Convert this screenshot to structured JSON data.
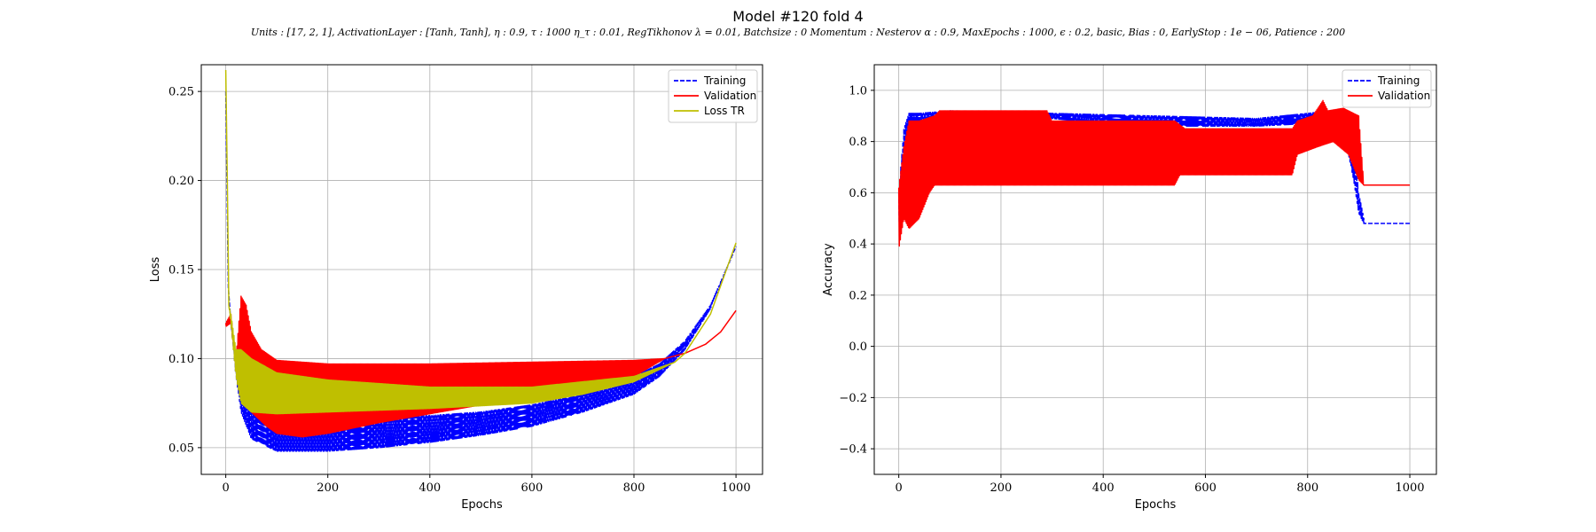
{
  "figure": {
    "title": "Model #120 fold 4",
    "subtitle": "Units : [17, 2, 1], ActivationLayer : [Tanh, Tanh], η : 0.9, τ : 1000 η_τ : 0.01, RegTikhonov λ = 0.01, Batchsize : 0 Momentum : Nesterov α : 0.9, MaxEpochs : 1000, ϵ : 0.2, basic, Bias : 0, EarlyStop : 1e − 06, Patience : 200"
  },
  "chart_data": [
    {
      "type": "line",
      "xlabel": "Epochs",
      "ylabel": "Loss",
      "xlim": [
        -48,
        1052
      ],
      "ylim": [
        0.035,
        0.265
      ],
      "xticks": [
        0,
        200,
        400,
        600,
        800,
        1000
      ],
      "yticks": [
        0.05,
        0.1,
        0.15,
        0.2,
        0.25
      ],
      "ytick_labels": [
        "0.05",
        "0.10",
        "0.15",
        "0.20",
        "0.25"
      ],
      "grid": true,
      "legend_position": "top-right",
      "series": [
        {
          "name": "Training",
          "color": "#0000ff",
          "style": "dashed",
          "oscillating": true,
          "upper": [
            [
              0,
              0.25
            ],
            [
              5,
              0.14
            ],
            [
              10,
              0.12
            ],
            [
              20,
              0.1
            ],
            [
              30,
              0.085
            ],
            [
              50,
              0.072
            ],
            [
              100,
              0.066
            ],
            [
              200,
              0.066
            ],
            [
              300,
              0.067
            ],
            [
              400,
              0.068
            ],
            [
              500,
              0.07
            ],
            [
              600,
              0.074
            ],
            [
              700,
              0.08
            ],
            [
              800,
              0.09
            ],
            [
              850,
              0.097
            ],
            [
              900,
              0.11
            ],
            [
              950,
              0.13
            ],
            [
              1000,
              0.163
            ]
          ],
          "lower": [
            [
              0,
              0.25
            ],
            [
              5,
              0.14
            ],
            [
              10,
              0.12
            ],
            [
              20,
              0.09
            ],
            [
              30,
              0.07
            ],
            [
              50,
              0.055
            ],
            [
              100,
              0.048
            ],
            [
              200,
              0.048
            ],
            [
              300,
              0.05
            ],
            [
              400,
              0.053
            ],
            [
              500,
              0.057
            ],
            [
              600,
              0.062
            ],
            [
              700,
              0.07
            ],
            [
              800,
              0.08
            ],
            [
              850,
              0.09
            ],
            [
              900,
              0.105
            ],
            [
              950,
              0.128
            ],
            [
              1000,
              0.163
            ]
          ]
        },
        {
          "name": "Validation",
          "color": "#ff0000",
          "style": "solid",
          "oscillating": true,
          "upper": [
            [
              0,
              0.12
            ],
            [
              10,
              0.125
            ],
            [
              20,
              0.1
            ],
            [
              30,
              0.135
            ],
            [
              40,
              0.13
            ],
            [
              50,
              0.115
            ],
            [
              70,
              0.105
            ],
            [
              100,
              0.099
            ],
            [
              200,
              0.097
            ],
            [
              400,
              0.097
            ],
            [
              600,
              0.098
            ],
            [
              800,
              0.099
            ],
            [
              860,
              0.1
            ]
          ],
          "lower": [
            [
              0,
              0.118
            ],
            [
              10,
              0.12
            ],
            [
              20,
              0.095
            ],
            [
              30,
              0.085
            ],
            [
              50,
              0.07
            ],
            [
              80,
              0.062
            ],
            [
              100,
              0.058
            ],
            [
              150,
              0.056
            ],
            [
              200,
              0.058
            ],
            [
              300,
              0.064
            ],
            [
              400,
              0.069
            ],
            [
              500,
              0.074
            ],
            [
              600,
              0.078
            ],
            [
              700,
              0.083
            ],
            [
              800,
              0.09
            ],
            [
              860,
              0.1
            ]
          ],
          "tail": [
            [
              860,
              0.1
            ],
            [
              900,
              0.103
            ],
            [
              940,
              0.108
            ],
            [
              970,
              0.115
            ],
            [
              1000,
              0.127
            ]
          ]
        },
        {
          "name": "Loss TR",
          "color": "#bfbf00",
          "style": "solid",
          "oscillating": true,
          "upper": [
            [
              0,
              0.262
            ],
            [
              3,
              0.2
            ],
            [
              6,
              0.13
            ],
            [
              10,
              0.125
            ],
            [
              20,
              0.105
            ],
            [
              30,
              0.105
            ],
            [
              50,
              0.1
            ],
            [
              100,
              0.092
            ],
            [
              200,
              0.088
            ],
            [
              400,
              0.084
            ],
            [
              600,
              0.084
            ],
            [
              800,
              0.09
            ],
            [
              880,
              0.098
            ],
            [
              900,
              0.103
            ],
            [
              950,
              0.125
            ],
            [
              1000,
              0.165
            ]
          ],
          "lower": [
            [
              0,
              0.262
            ],
            [
              3,
              0.2
            ],
            [
              6,
              0.13
            ],
            [
              10,
              0.12
            ],
            [
              20,
              0.09
            ],
            [
              30,
              0.075
            ],
            [
              50,
              0.07
            ],
            [
              100,
              0.069
            ],
            [
              200,
              0.07
            ],
            [
              400,
              0.072
            ],
            [
              600,
              0.075
            ],
            [
              700,
              0.08
            ],
            [
              800,
              0.087
            ],
            [
              880,
              0.098
            ],
            [
              900,
              0.103
            ],
            [
              950,
              0.125
            ],
            [
              1000,
              0.165
            ]
          ]
        }
      ]
    },
    {
      "type": "line",
      "xlabel": "Epochs",
      "ylabel": "Accuracy",
      "xlim": [
        -48,
        1052
      ],
      "ylim": [
        -0.5,
        1.1
      ],
      "xticks": [
        0,
        200,
        400,
        600,
        800,
        1000
      ],
      "yticks": [
        -0.4,
        -0.2,
        0.0,
        0.2,
        0.4,
        0.6,
        0.8,
        1.0
      ],
      "ytick_labels": [
        "−0.4",
        "−0.2",
        "0.0",
        "0.2",
        "0.4",
        "0.6",
        "0.8",
        "1.0"
      ],
      "grid": true,
      "legend_position": "top-right",
      "series": [
        {
          "name": "Training",
          "color": "#0000ff",
          "style": "dashed",
          "oscillating": true,
          "upper": [
            [
              0,
              0.6
            ],
            [
              10,
              0.85
            ],
            [
              20,
              0.91
            ],
            [
              40,
              0.91
            ],
            [
              100,
              0.92
            ],
            [
              300,
              0.91
            ],
            [
              500,
              0.9
            ],
            [
              700,
              0.89
            ],
            [
              800,
              0.91
            ],
            [
              850,
              0.92
            ],
            [
              880,
              0.9
            ],
            [
              890,
              0.8
            ],
            [
              900,
              0.6
            ],
            [
              910,
              0.5
            ]
          ],
          "lower": [
            [
              0,
              0.45
            ],
            [
              10,
              0.72
            ],
            [
              20,
              0.8
            ],
            [
              40,
              0.85
            ],
            [
              100,
              0.9
            ],
            [
              300,
              0.89
            ],
            [
              400,
              0.87
            ],
            [
              500,
              0.86
            ],
            [
              700,
              0.86
            ],
            [
              800,
              0.87
            ],
            [
              850,
              0.85
            ],
            [
              880,
              0.75
            ],
            [
              890,
              0.65
            ],
            [
              900,
              0.52
            ],
            [
              910,
              0.48
            ]
          ],
          "tail": [
            [
              910,
              0.48
            ],
            [
              1000,
              0.48
            ]
          ]
        },
        {
          "name": "Validation",
          "color": "#ff0000",
          "style": "solid",
          "oscillating": true,
          "upper": [
            [
              0,
              0.62
            ],
            [
              10,
              0.78
            ],
            [
              20,
              0.88
            ],
            [
              40,
              0.88
            ],
            [
              70,
              0.9
            ],
            [
              80,
              0.92
            ],
            [
              290,
              0.92
            ],
            [
              300,
              0.88
            ],
            [
              540,
              0.88
            ],
            [
              560,
              0.85
            ],
            [
              770,
              0.85
            ],
            [
              780,
              0.88
            ],
            [
              810,
              0.9
            ],
            [
              830,
              0.96
            ],
            [
              840,
              0.92
            ],
            [
              870,
              0.93
            ],
            [
              900,
              0.9
            ],
            [
              910,
              0.63
            ]
          ],
          "lower": [
            [
              0,
              0.38
            ],
            [
              10,
              0.5
            ],
            [
              20,
              0.46
            ],
            [
              40,
              0.5
            ],
            [
              60,
              0.6
            ],
            [
              70,
              0.63
            ],
            [
              540,
              0.63
            ],
            [
              550,
              0.67
            ],
            [
              770,
              0.67
            ],
            [
              780,
              0.75
            ],
            [
              820,
              0.78
            ],
            [
              850,
              0.8
            ],
            [
              880,
              0.75
            ],
            [
              900,
              0.65
            ],
            [
              910,
              0.63
            ]
          ],
          "tail": [
            [
              910,
              0.63
            ],
            [
              1000,
              0.63
            ]
          ]
        }
      ]
    }
  ]
}
